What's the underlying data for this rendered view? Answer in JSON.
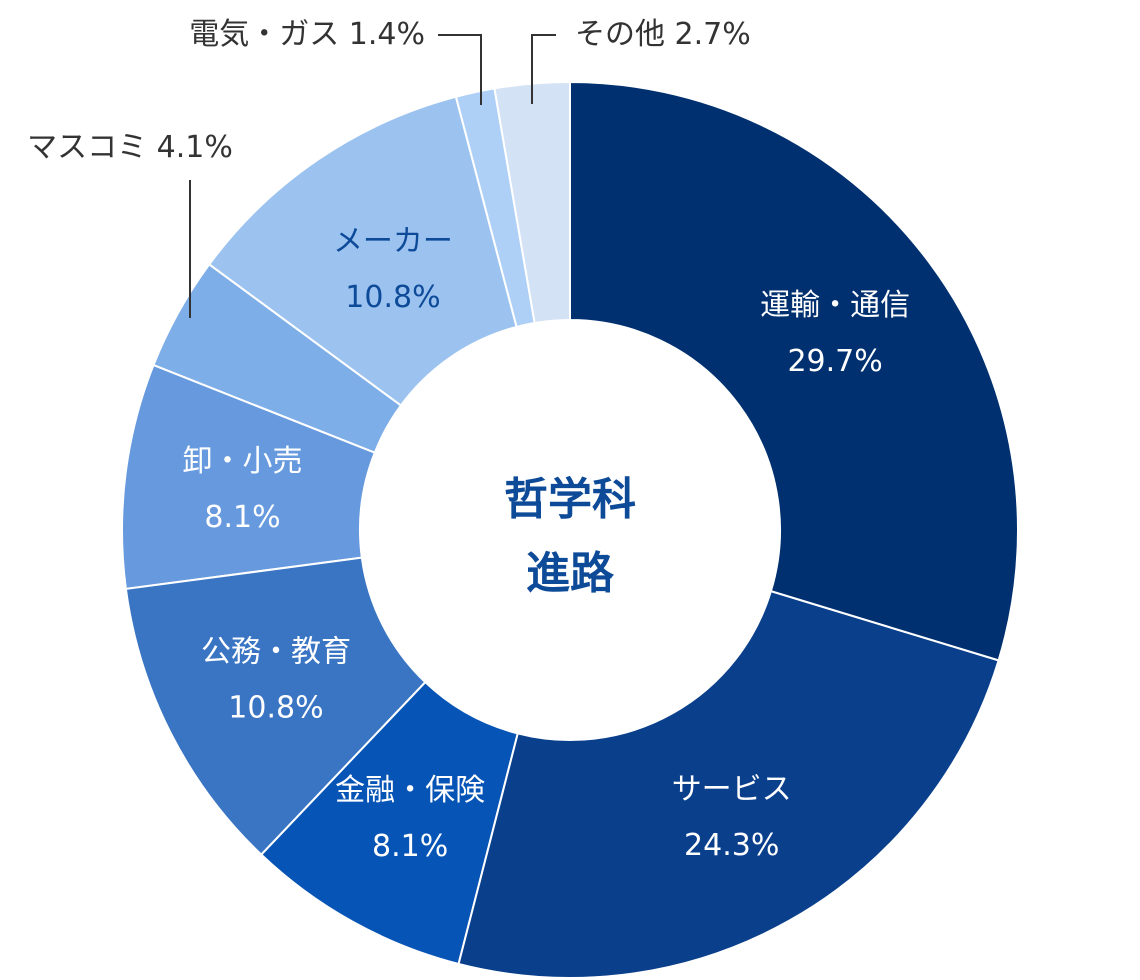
{
  "chart_data": {
    "type": "donut",
    "center_text": [
      "哲学科",
      "進路"
    ],
    "categories": [
      "運輸・通信",
      "サービス",
      "金融・保険",
      "公務・教育",
      "卸・小売",
      "マスコミ",
      "メーカー",
      "電気・ガス",
      "その他"
    ],
    "values": [
      29.7,
      24.3,
      8.1,
      10.8,
      8.1,
      4.1,
      10.8,
      1.4,
      2.7
    ],
    "value_labels": [
      "29.7%",
      "24.3%",
      "8.1%",
      "10.8%",
      "8.1%",
      "4.1%",
      "10.8%",
      "1.4%",
      "2.7%"
    ],
    "colors": [
      "#00306f",
      "#0a3f8c",
      "#0654b5",
      "#3a75c4",
      "#6699dd",
      "#7eaee8",
      "#9cc3f0",
      "#aed0f7",
      "#d3e2f4"
    ]
  }
}
